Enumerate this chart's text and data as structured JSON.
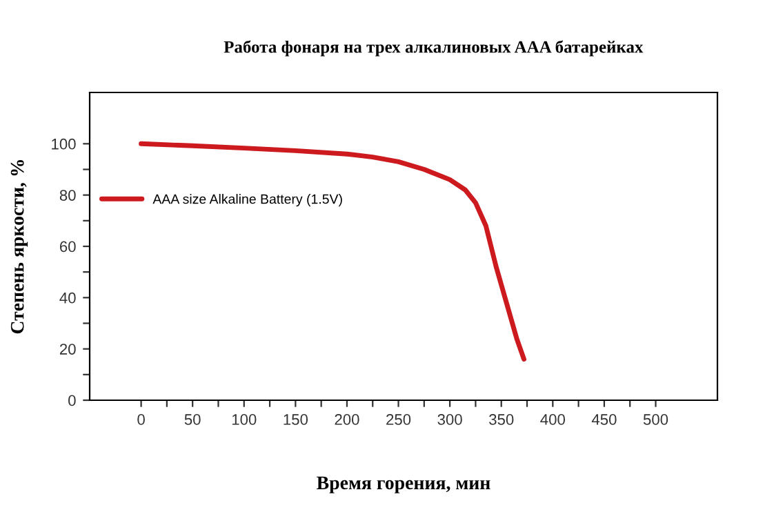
{
  "chart_data": {
    "type": "line",
    "title": "Работа фонаря на трех алкалиновых AAA батарейках",
    "xlabel": "Время горения, мин",
    "ylabel": "Степень яркости, %",
    "series": [
      {
        "name": "AAA size Alkaline Battery (1.5V)",
        "color": "#cc1a1f",
        "x": [
          0,
          50,
          100,
          150,
          200,
          225,
          250,
          275,
          300,
          315,
          325,
          335,
          345,
          355,
          365,
          372
        ],
        "values": [
          100,
          99.2,
          98.3,
          97.3,
          96,
          94.8,
          93,
          90,
          86,
          82,
          77,
          68,
          52,
          38,
          24,
          16
        ]
      }
    ],
    "xlim": [
      -50,
      560
    ],
    "ylim": [
      0,
      120
    ],
    "xticks": [
      0,
      {
        "value": 25,
        "label": null
      },
      50,
      {
        "value": 75,
        "label": null
      },
      100,
      {
        "value": 125,
        "label": null
      },
      150,
      {
        "value": 175,
        "label": null
      },
      200,
      {
        "value": 225,
        "label": null
      },
      250,
      {
        "value": 275,
        "label": null
      },
      300,
      {
        "value": 325,
        "label": null
      },
      350,
      {
        "value": 375,
        "label": null
      },
      400,
      {
        "value": 425,
        "label": null
      },
      450,
      {
        "value": 475,
        "label": null
      },
      500
    ],
    "yticks": [
      0,
      {
        "value": 10,
        "label": null
      },
      20,
      {
        "value": 30,
        "label": null
      },
      40,
      {
        "value": 50,
        "label": null
      },
      60,
      {
        "value": 70,
        "label": null
      },
      80,
      {
        "value": 90,
        "label": null
      },
      100
    ],
    "legend": "left",
    "grid": false,
    "marker": "none",
    "line_style": "solid"
  }
}
